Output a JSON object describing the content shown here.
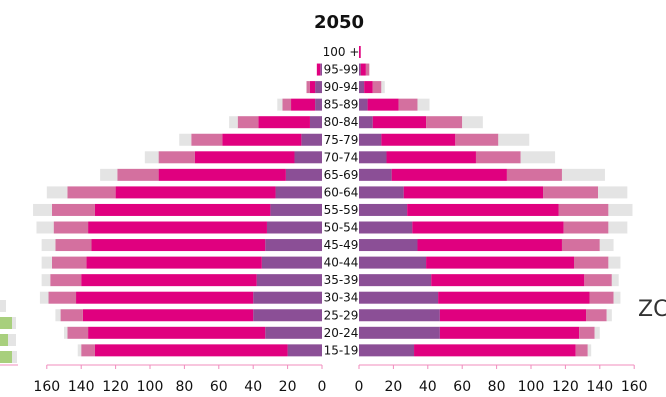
{
  "chart_data": {
    "type": "bar",
    "title": "2050",
    "orientation": "horizontal",
    "layout": "population-pyramid",
    "colors": {
      "inner": "#8b4f96",
      "main": "#e0007f",
      "outer": "#d4709f",
      "outermost": "#e4e4e4",
      "edge_side_accent": "#a8cf7d",
      "axis": "#f08cbd"
    },
    "age_groups": [
      "100 +",
      "95-99",
      "90-94",
      "85-89",
      "80-84",
      "75-79",
      "70-74",
      "65-69",
      "60-64",
      "55-59",
      "50-54",
      "45-49",
      "40-44",
      "35-39",
      "30-34",
      "25-29",
      "20-24",
      "15-19"
    ],
    "left_side": {
      "segment_order": [
        "inner",
        "main",
        "outer",
        "outermost"
      ],
      "values": [
        [
          0,
          0,
          0,
          0
        ],
        [
          1,
          2,
          0,
          0
        ],
        [
          4,
          3,
          2,
          0
        ],
        [
          4,
          14,
          5,
          3
        ],
        [
          7,
          30,
          12,
          5
        ],
        [
          12,
          46,
          18,
          7
        ],
        [
          16,
          58,
          21,
          8
        ],
        [
          21,
          74,
          24,
          10
        ],
        [
          27,
          93,
          28,
          12
        ],
        [
          30,
          102,
          25,
          11
        ],
        [
          32,
          104,
          20,
          10
        ],
        [
          33,
          101,
          21,
          8
        ],
        [
          35,
          102,
          20,
          6
        ],
        [
          38,
          102,
          18,
          5
        ],
        [
          40,
          103,
          16,
          5
        ],
        [
          40,
          99,
          13,
          3
        ],
        [
          33,
          103,
          12,
          2
        ],
        [
          20,
          112,
          8,
          2
        ]
      ]
    },
    "right_side": {
      "segment_order": [
        "inner",
        "main",
        "outer",
        "outermost"
      ],
      "values": [
        [
          0,
          1,
          0,
          0
        ],
        [
          1,
          3,
          2,
          0
        ],
        [
          3,
          5,
          5,
          2
        ],
        [
          5,
          18,
          11,
          7
        ],
        [
          8,
          31,
          21,
          12
        ],
        [
          13,
          43,
          25,
          18
        ],
        [
          16,
          52,
          26,
          20
        ],
        [
          19,
          67,
          32,
          25
        ],
        [
          26,
          81,
          32,
          17
        ],
        [
          28,
          88,
          29,
          14
        ],
        [
          31,
          88,
          26,
          11
        ],
        [
          34,
          84,
          22,
          8
        ],
        [
          39,
          86,
          20,
          7
        ],
        [
          42,
          89,
          16,
          4
        ],
        [
          46,
          88,
          14,
          4
        ],
        [
          47,
          85,
          12,
          3
        ],
        [
          47,
          81,
          9,
          3
        ],
        [
          32,
          94,
          7,
          2
        ]
      ]
    },
    "left_ticks": [
      "160",
      "140",
      "120",
      "100",
      "80",
      "60",
      "40",
      "20",
      "0"
    ],
    "right_ticks": [
      "0",
      "20",
      "40",
      "60",
      "80",
      "100",
      "120",
      "140",
      "160"
    ],
    "xlim_left": [
      0,
      160
    ],
    "xlim_right": [
      0,
      160
    ],
    "partial_text": "ZC"
  }
}
